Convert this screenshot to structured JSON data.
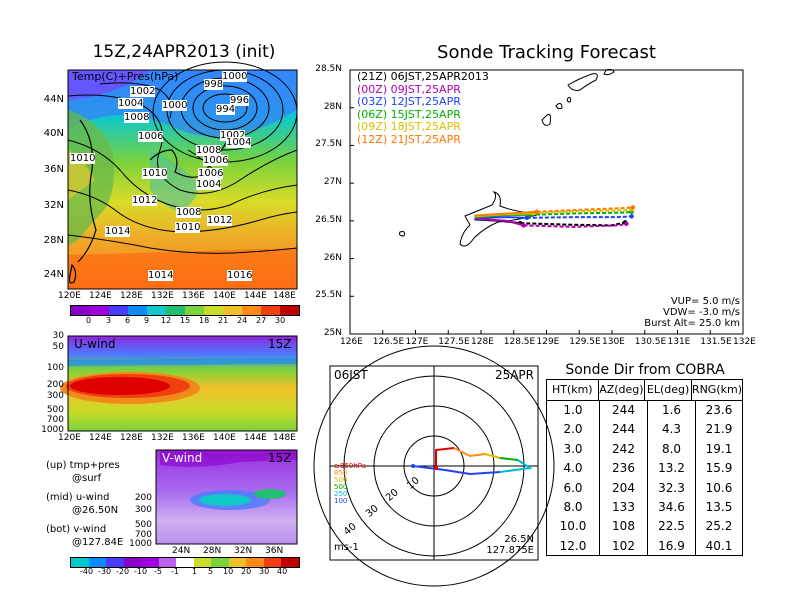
{
  "left": {
    "title": "15Z,24APR2013 (init)",
    "map_label": "Temp(C)+Pres(hPa)",
    "pressure_labels": [
      "1000",
      "1002",
      "1004",
      "998",
      "1000",
      "1008",
      "996",
      "994",
      "1006",
      "1002",
      "1004",
      "1008",
      "1006",
      "1010",
      "1010",
      "1006",
      "1004",
      "1012",
      "1008",
      "1012",
      "1010",
      "1014",
      "1014",
      "1016"
    ],
    "lat_ticks": [
      "44N",
      "40N",
      "36N",
      "32N",
      "28N",
      "24N"
    ],
    "lon_ticks": [
      "120E",
      "124E",
      "128E",
      "132E",
      "136E",
      "140E",
      "144E",
      "148E"
    ],
    "temp_colorbar": [
      "0",
      "3",
      "6",
      "9",
      "12",
      "15",
      "18",
      "21",
      "24",
      "27",
      "30"
    ],
    "temp_colors": [
      "#8a00c8",
      "#a000e0",
      "#4a3cff",
      "#0a8cff",
      "#10c8c8",
      "#20c070",
      "#7ad23c",
      "#c8dc28",
      "#f0c028",
      "#ff8a18",
      "#f04010",
      "#c00000"
    ],
    "uwind": {
      "label": "U-wind",
      "time": "15Z",
      "levels": [
        "30",
        "50",
        "100",
        "200",
        "300",
        "500",
        "700",
        "1000"
      ],
      "lon_ticks": [
        "120E",
        "124E",
        "128E",
        "132E",
        "136E",
        "140E",
        "144E",
        "148E"
      ]
    },
    "vwind": {
      "label": "V-wind",
      "time": "15Z",
      "levels": [
        "200",
        "300",
        "500",
        "700",
        "1000"
      ],
      "lat_ticks": [
        "24N",
        "28N",
        "32N",
        "36N"
      ]
    },
    "legend_notes": [
      {
        "a": "(up) tmp+pres",
        "b": "@surf"
      },
      {
        "a": "(mid) u-wind",
        "b": "@26.50N"
      },
      {
        "a": "(bot) v-wind",
        "b": "@127.84E"
      }
    ],
    "wind_colorbar": [
      "-40",
      "-30",
      "-20",
      "-10",
      "-5",
      "-1",
      "1",
      "5",
      "10",
      "20",
      "30",
      "40"
    ],
    "wind_colors": [
      "#00c8c8",
      "#0a8cff",
      "#4a3cff",
      "#8a00c8",
      "#a000e0",
      "#c060f0",
      "#ffffff",
      "#c8dc28",
      "#7ad23c",
      "#f0c028",
      "#ff8a18",
      "#f04010",
      "#c00000"
    ]
  },
  "tracking": {
    "title": "Sonde Tracking Forecast",
    "legend": [
      {
        "text": "(21Z)  06JST,25APR2013",
        "color": "#000000"
      },
      {
        "text": "(00Z)  09JST,25APR",
        "color": "#b000b0"
      },
      {
        "text": "(03Z)  12JST,25APR",
        "color": "#2040ff"
      },
      {
        "text": "(06Z)  15JST,25APR",
        "color": "#00b000"
      },
      {
        "text": "(09Z)  18JST,25APR",
        "color": "#d8c000"
      },
      {
        "text": "(12Z)  21JST,25APR",
        "color": "#ff7800"
      }
    ],
    "info": [
      "VUP=  5.0  m/s",
      "VDW= -3.0  m/s",
      "Burst Alt=  25.0  km"
    ],
    "chart_data": {
      "type": "line",
      "xlim": [
        126,
        132
      ],
      "ylim": [
        25,
        28.5
      ],
      "x_ticks": [
        "126E",
        "126.5E",
        "127E",
        "127.5E",
        "128E",
        "128.5E",
        "129E",
        "129.5E",
        "130E",
        "130.5E",
        "131E",
        "131.5E",
        "132E"
      ],
      "y_ticks": [
        "25N",
        "25.5N",
        "26N",
        "26.5N",
        "27N",
        "27.5N",
        "28N",
        "28.5N"
      ],
      "series": [
        {
          "color": "#000000",
          "ascent": [
            [
              127.9,
              26.52
            ],
            [
              128.3,
              26.5
            ],
            [
              128.6,
              26.47
            ]
          ],
          "descent": [
            [
              128.6,
              26.47
            ],
            [
              129.3,
              26.45
            ],
            [
              130.0,
              26.44
            ],
            [
              130.2,
              26.48
            ]
          ]
        },
        {
          "color": "#b000b0",
          "ascent": [
            [
              127.9,
              26.53
            ],
            [
              128.4,
              26.5
            ],
            [
              128.65,
              26.44
            ]
          ],
          "descent": [
            [
              128.65,
              26.44
            ],
            [
              129.4,
              26.42
            ],
            [
              130.1,
              26.44
            ],
            [
              130.22,
              26.46
            ]
          ]
        },
        {
          "color": "#2040ff",
          "ascent": [
            [
              127.9,
              26.54
            ],
            [
              128.4,
              26.55
            ],
            [
              128.7,
              26.54
            ]
          ],
          "descent": [
            [
              128.7,
              26.54
            ],
            [
              129.5,
              26.55
            ],
            [
              130.1,
              26.55
            ],
            [
              130.3,
              26.56
            ]
          ]
        },
        {
          "color": "#00b000",
          "ascent": [
            [
              127.9,
              26.55
            ],
            [
              128.4,
              26.58
            ],
            [
              128.75,
              26.58
            ]
          ],
          "descent": [
            [
              128.75,
              26.58
            ],
            [
              129.5,
              26.6
            ],
            [
              130.2,
              26.61
            ],
            [
              130.3,
              26.62
            ]
          ]
        },
        {
          "color": "#d8c000",
          "ascent": [
            [
              127.9,
              26.56
            ],
            [
              128.4,
              26.59
            ],
            [
              128.8,
              26.6
            ]
          ],
          "descent": [
            [
              128.8,
              26.6
            ],
            [
              129.5,
              26.63
            ],
            [
              130.2,
              26.64
            ],
            [
              130.3,
              26.65
            ]
          ]
        },
        {
          "color": "#ff7800",
          "ascent": [
            [
              127.9,
              26.57
            ],
            [
              128.45,
              26.6
            ],
            [
              128.85,
              26.62
            ]
          ],
          "descent": [
            [
              128.85,
              26.62
            ],
            [
              129.6,
              26.65
            ],
            [
              130.2,
              26.67
            ],
            [
              130.32,
              26.68
            ]
          ]
        }
      ]
    }
  },
  "polar": {
    "time": "06JST",
    "date": "25APR",
    "range_labels": [
      "10",
      "20",
      "30",
      "40"
    ],
    "levels": [
      {
        "text": "≥850hPa",
        "color": "#e00000"
      },
      {
        "text": "850",
        "color": "#ff8a18"
      },
      {
        "text": "500",
        "color": "#d8c000"
      },
      {
        "text": "500",
        "color": "#00b000"
      },
      {
        "text": "250",
        "color": "#00b8d8"
      },
      {
        "text": "100",
        "color": "#2040ff"
      }
    ],
    "unit": "ms-1",
    "location": [
      "26.5N",
      "127.875E"
    ]
  },
  "cobra": {
    "title": "Sonde Dir from COBRA",
    "headers": [
      "HT(km)",
      "AZ(deg)",
      "EL(deg)",
      "RNG(km)"
    ],
    "rows": [
      [
        "1.0",
        "244",
        "1.6",
        "23.6"
      ],
      [
        "2.0",
        "244",
        "4.3",
        "21.9"
      ],
      [
        "3.0",
        "242",
        "8.0",
        "19.1"
      ],
      [
        "4.0",
        "236",
        "13.2",
        "15.9"
      ],
      [
        "6.0",
        "204",
        "32.3",
        "10.6"
      ],
      [
        "8.0",
        "133",
        "34.6",
        "13.5"
      ],
      [
        "10.0",
        "108",
        "22.5",
        "25.2"
      ],
      [
        "12.0",
        "102",
        "16.9",
        "40.1"
      ]
    ]
  }
}
